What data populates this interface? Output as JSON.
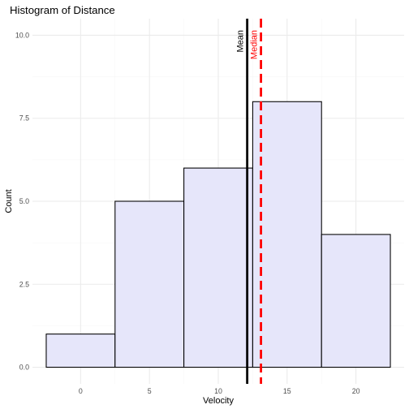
{
  "chart_data": {
    "type": "bar",
    "title": "Histogram of Distance",
    "xlabel": "Velocity",
    "ylabel": "Count",
    "xlim": [
      -3.5,
      23.5
    ],
    "ylim": [
      -0.5,
      10.5
    ],
    "x_ticks": [
      0,
      5,
      10,
      15,
      20
    ],
    "x_tick_labels": [
      "0",
      "5",
      "10",
      "15",
      "20"
    ],
    "y_ticks": [
      0,
      2.5,
      5,
      7.5,
      10
    ],
    "y_tick_labels": [
      "0.0",
      "2.5",
      "5.0",
      "7.5",
      "10.0"
    ],
    "grid": true,
    "bins": [
      {
        "x0": -2.5,
        "x1": 2.5,
        "count": 1
      },
      {
        "x0": 2.5,
        "x1": 7.5,
        "count": 5
      },
      {
        "x0": 7.5,
        "x1": 12.5,
        "count": 6
      },
      {
        "x0": 12.5,
        "x1": 17.5,
        "count": 8
      },
      {
        "x0": 17.5,
        "x1": 22.5,
        "count": 4
      }
    ],
    "bar_fill": "#e6e6fa",
    "bar_stroke": "#000000",
    "reference_lines": [
      {
        "label": "Mean",
        "value": 12.1,
        "color": "#000000",
        "style": "solid"
      },
      {
        "label": "Median",
        "value": 13.1,
        "color": "#ff0000",
        "style": "dashed"
      }
    ]
  }
}
